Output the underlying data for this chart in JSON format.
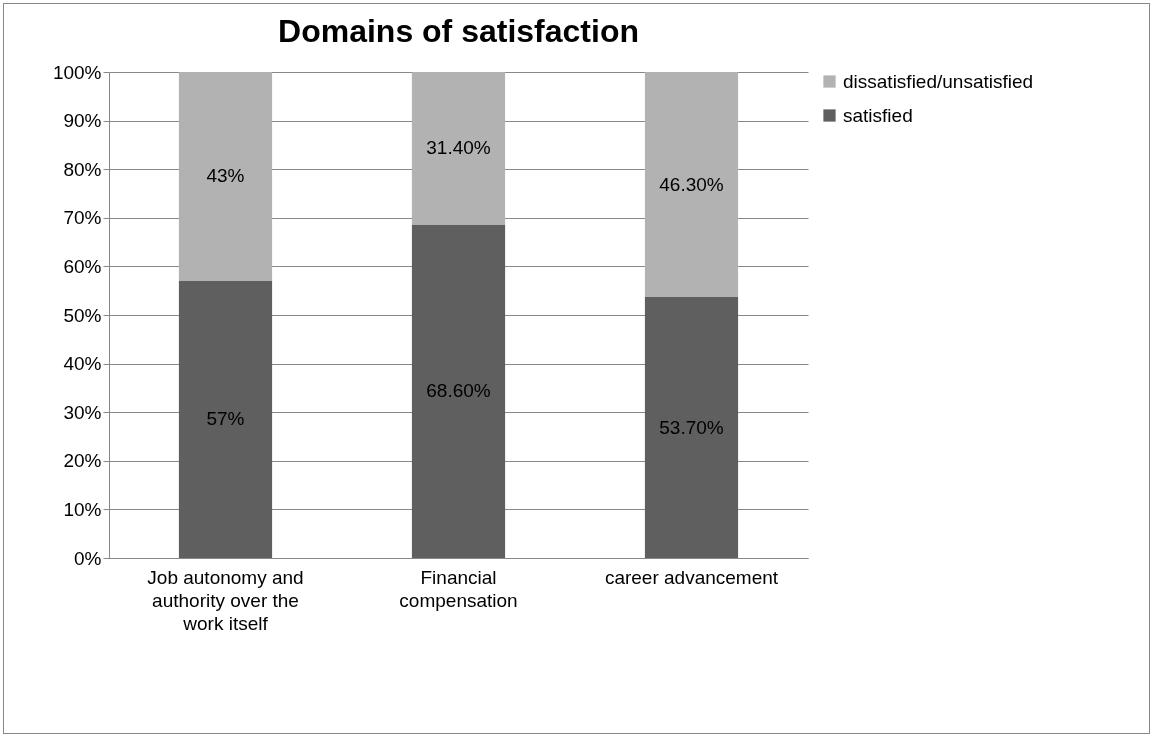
{
  "chart_data": {
    "type": "bar",
    "title": "Domains of satisfaction",
    "stacked": true,
    "categories": [
      "Job autonomy and authority over the work itself",
      "Financial compensation",
      "career advancement"
    ],
    "series": [
      {
        "name": "satisfied",
        "color": "#5f5f5f",
        "values": [
          57,
          68.6,
          53.7
        ],
        "value_labels": [
          "57%",
          "68.60%",
          "53.70%"
        ]
      },
      {
        "name": "dissatisfied/unsatisfied",
        "color": "#b2b2b2",
        "values": [
          43,
          31.4,
          46.3
        ],
        "value_labels": [
          "43%",
          "31.40%",
          "46.30%"
        ]
      }
    ],
    "ylim": [
      0,
      100
    ],
    "yticks": [
      {
        "value": 0,
        "label": "0%"
      },
      {
        "value": 10,
        "label": "10%"
      },
      {
        "value": 20,
        "label": "20%"
      },
      {
        "value": 30,
        "label": "30%"
      },
      {
        "value": 40,
        "label": "40%"
      },
      {
        "value": 50,
        "label": "50%"
      },
      {
        "value": 60,
        "label": "60%"
      },
      {
        "value": 70,
        "label": "70%"
      },
      {
        "value": 80,
        "label": "80%"
      },
      {
        "value": 90,
        "label": "90%"
      },
      {
        "value": 100,
        "label": "100%"
      }
    ],
    "grid": "y",
    "legend": "right"
  }
}
